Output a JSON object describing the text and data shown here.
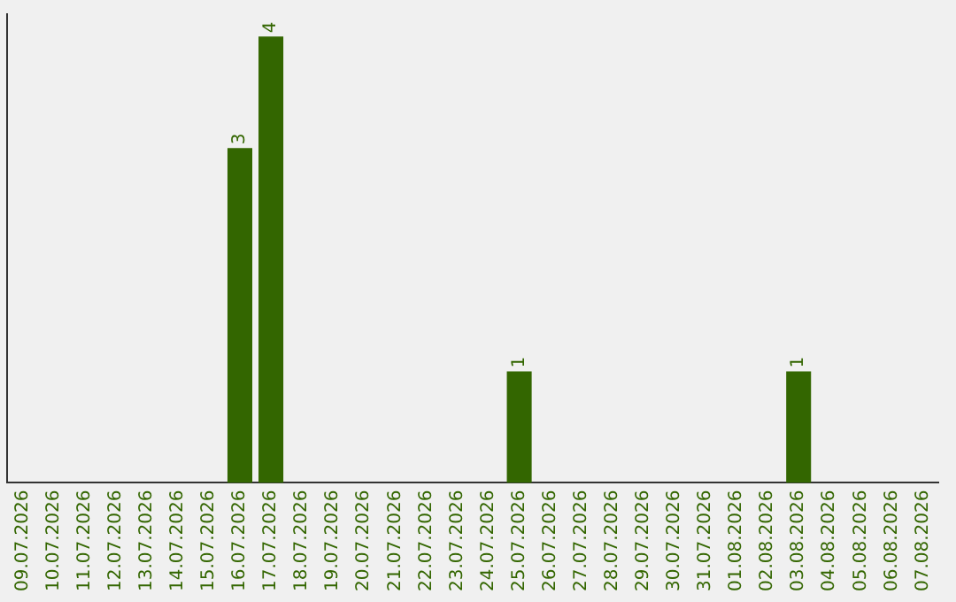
{
  "chart_data": {
    "type": "bar",
    "categories": [
      "09.07.2026",
      "10.07.2026",
      "11.07.2026",
      "12.07.2026",
      "13.07.2026",
      "14.07.2026",
      "15.07.2026",
      "16.07.2026",
      "17.07.2026",
      "18.07.2026",
      "19.07.2026",
      "20.07.2026",
      "21.07.2026",
      "22.07.2026",
      "23.07.2026",
      "24.07.2026",
      "25.07.2026",
      "26.07.2026",
      "27.07.2026",
      "28.07.2026",
      "29.07.2026",
      "30.07.2026",
      "31.07.2026",
      "01.08.2026",
      "02.08.2026",
      "03.08.2026",
      "04.08.2026",
      "05.08.2026",
      "06.08.2026",
      "07.08.2026"
    ],
    "values": [
      0,
      0,
      0,
      0,
      0,
      0,
      0,
      3,
      4,
      0,
      0,
      0,
      0,
      0,
      0,
      0,
      1,
      0,
      0,
      0,
      0,
      0,
      0,
      0,
      0,
      1,
      0,
      0,
      0,
      0
    ],
    "value_labels": [
      null,
      null,
      null,
      null,
      null,
      null,
      null,
      "3",
      "4",
      null,
      null,
      null,
      null,
      null,
      null,
      null,
      "1",
      null,
      null,
      null,
      null,
      null,
      null,
      null,
      null,
      "1",
      null,
      null,
      null,
      null
    ],
    "color": "#336600",
    "ylim": [
      0,
      4.2
    ],
    "tick_labels": "x",
    "grid": false,
    "legend": false
  }
}
